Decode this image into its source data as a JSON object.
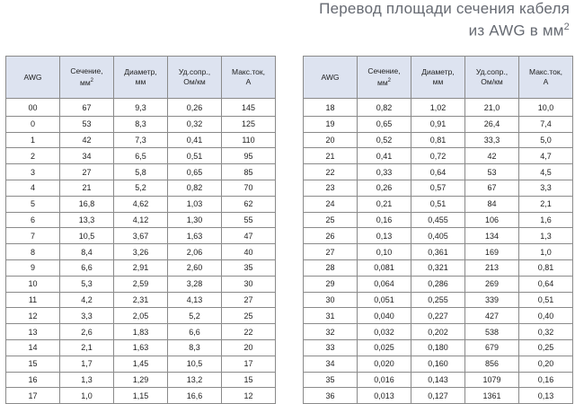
{
  "title": {
    "line1": "Перевод площади сечения кабеля",
    "line2": "из AWG в мм",
    "line2_sup": "2"
  },
  "headers": {
    "awg": "AWG",
    "section": "Сечение,",
    "section_unit": "мм",
    "section_unit_sup": "2",
    "diameter": "Диаметр,",
    "diameter_unit": "мм",
    "resistance": "Уд.сопр.,",
    "resistance_unit": "Ом/км",
    "current": "Макс.ток,",
    "current_unit": "А"
  },
  "left_rows": [
    [
      "00",
      "67",
      "9,3",
      "0,26",
      "145"
    ],
    [
      "0",
      "53",
      "8,3",
      "0,32",
      "125"
    ],
    [
      "1",
      "42",
      "7,3",
      "0,41",
      "110"
    ],
    [
      "2",
      "34",
      "6,5",
      "0,51",
      "95"
    ],
    [
      "3",
      "27",
      "5,8",
      "0,65",
      "85"
    ],
    [
      "4",
      "21",
      "5,2",
      "0,82",
      "70"
    ],
    [
      "5",
      "16,8",
      "4,62",
      "1,03",
      "62"
    ],
    [
      "6",
      "13,3",
      "4,12",
      "1,30",
      "55"
    ],
    [
      "7",
      "10,5",
      "3,67",
      "1,63",
      "47"
    ],
    [
      "8",
      "8,4",
      "3,26",
      "2,06",
      "40"
    ],
    [
      "9",
      "6,6",
      "2,91",
      "2,60",
      "35"
    ],
    [
      "10",
      "5,3",
      "2,59",
      "3,28",
      "30"
    ],
    [
      "11",
      "4,2",
      "2,31",
      "4,13",
      "27"
    ],
    [
      "12",
      "3,3",
      "2,05",
      "5,2",
      "25"
    ],
    [
      "13",
      "2,6",
      "1,83",
      "6,6",
      "22"
    ],
    [
      "14",
      "2,1",
      "1,63",
      "8,3",
      "20"
    ],
    [
      "15",
      "1,7",
      "1,45",
      "10,5",
      "17"
    ],
    [
      "16",
      "1,3",
      "1,29",
      "13,2",
      "15"
    ],
    [
      "17",
      "1,0",
      "1,15",
      "16,6",
      "12"
    ]
  ],
  "right_rows": [
    [
      "18",
      "0,82",
      "1,02",
      "21,0",
      "10,0"
    ],
    [
      "19",
      "0,65",
      "0,91",
      "26,4",
      "7,4"
    ],
    [
      "20",
      "0,52",
      "0,81",
      "33,3",
      "5,0"
    ],
    [
      "21",
      "0,41",
      "0,72",
      "42",
      "4,7"
    ],
    [
      "22",
      "0,33",
      "0,64",
      "53",
      "4,5"
    ],
    [
      "23",
      "0,26",
      "0,57",
      "67",
      "3,3"
    ],
    [
      "24",
      "0,21",
      "0,51",
      "84",
      "2,1"
    ],
    [
      "25",
      "0,16",
      "0,455",
      "106",
      "1,6"
    ],
    [
      "26",
      "0,13",
      "0,405",
      "134",
      "1,3"
    ],
    [
      "27",
      "0,10",
      "0,361",
      "169",
      "1,0"
    ],
    [
      "28",
      "0,081",
      "0,321",
      "213",
      "0,81"
    ],
    [
      "29",
      "0,064",
      "0,286",
      "269",
      "0,64"
    ],
    [
      "30",
      "0,051",
      "0,255",
      "339",
      "0,51"
    ],
    [
      "31",
      "0,040",
      "0,227",
      "427",
      "0,40"
    ],
    [
      "32",
      "0,032",
      "0,202",
      "538",
      "0,32"
    ],
    [
      "33",
      "0,025",
      "0,180",
      "679",
      "0,25"
    ],
    [
      "34",
      "0,020",
      "0,160",
      "856",
      "0,20"
    ],
    [
      "35",
      "0,016",
      "0,143",
      "1079",
      "0,16"
    ],
    [
      "36",
      "0,013",
      "0,127",
      "1361",
      "0,13"
    ]
  ]
}
